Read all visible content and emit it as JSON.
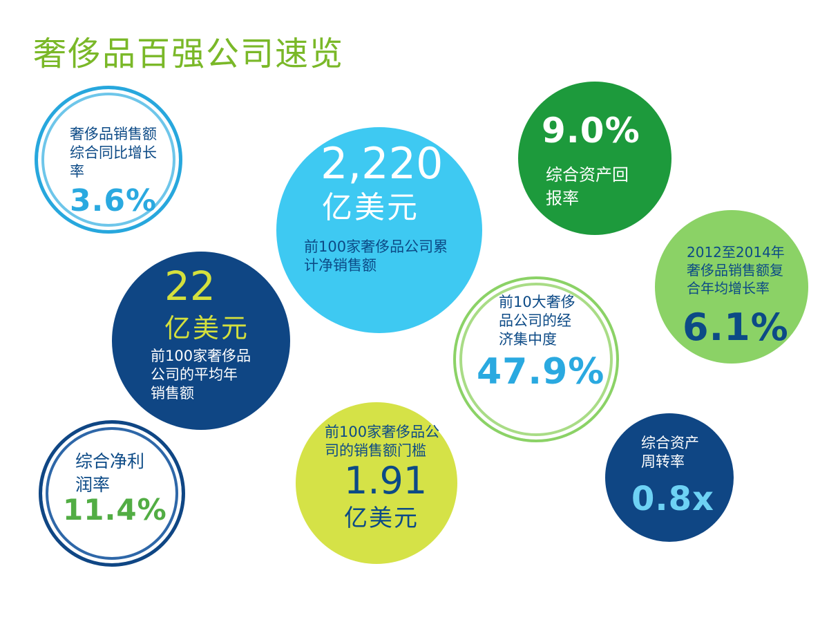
{
  "page": {
    "title": "奢侈品百强公司速览"
  },
  "bubbles": [
    {
      "label_lines": [
        "奢侈品销售额",
        "综合同比增长",
        "率"
      ],
      "value": "3.6%",
      "colors": {
        "ring": "#27a7dd",
        "value": "#2aa9e0",
        "label": "#0c4a86"
      }
    },
    {
      "value": "2,220",
      "unit": "亿美元",
      "label_lines": [
        "前100家奢侈品公司累",
        "计净销售额"
      ],
      "colors": {
        "fill": "#3ec9f2",
        "value": "#ffffff",
        "label": "#0c4a86"
      }
    },
    {
      "value": "9.0%",
      "label_lines": [
        "综合资产回",
        "报率"
      ],
      "colors": {
        "fill": "#1d9a3c",
        "value": "#ffffff",
        "label": "#ffffff"
      }
    },
    {
      "value": "22",
      "unit": "亿美元",
      "label_lines": [
        "前100家奢侈品",
        "公司的平均年",
        "销售额"
      ],
      "colors": {
        "fill": "#0f4684",
        "value": "#d4e03d",
        "label": "#ffffff"
      }
    },
    {
      "label_lines": [
        "2012至2014年",
        "奢侈品销售额复",
        "合年均增长率"
      ],
      "value": "6.1%",
      "colors": {
        "fill": "#8bd266",
        "value": "#0c4a86",
        "label": "#0c4a86"
      }
    },
    {
      "label_lines": [
        "前10大奢侈",
        "品公司的经",
        "济集中度"
      ],
      "value": "47.9%",
      "colors": {
        "ring": "#8bd266",
        "value": "#2aa9e0",
        "label": "#0c4a86"
      }
    },
    {
      "label_lines": [
        "综合净利",
        "润率"
      ],
      "value": "11.4%",
      "colors": {
        "ring": "#0f4684",
        "value": "#52ad44",
        "label": "#0c4a86"
      }
    },
    {
      "label_lines": [
        "前100家奢侈品公",
        "司的销售额门槛"
      ],
      "value": "1.91",
      "unit": "亿美元",
      "colors": {
        "fill": "#d5e247",
        "value": "#0c4a86",
        "label": "#0c4a86"
      }
    },
    {
      "label_lines": [
        "综合资产",
        "周转率"
      ],
      "value": "0.8x",
      "colors": {
        "fill": "#0f4684",
        "value": "#6ed2f4",
        "label": "#ffffff"
      }
    }
  ],
  "theme": {
    "title_color": "#7ab828"
  }
}
